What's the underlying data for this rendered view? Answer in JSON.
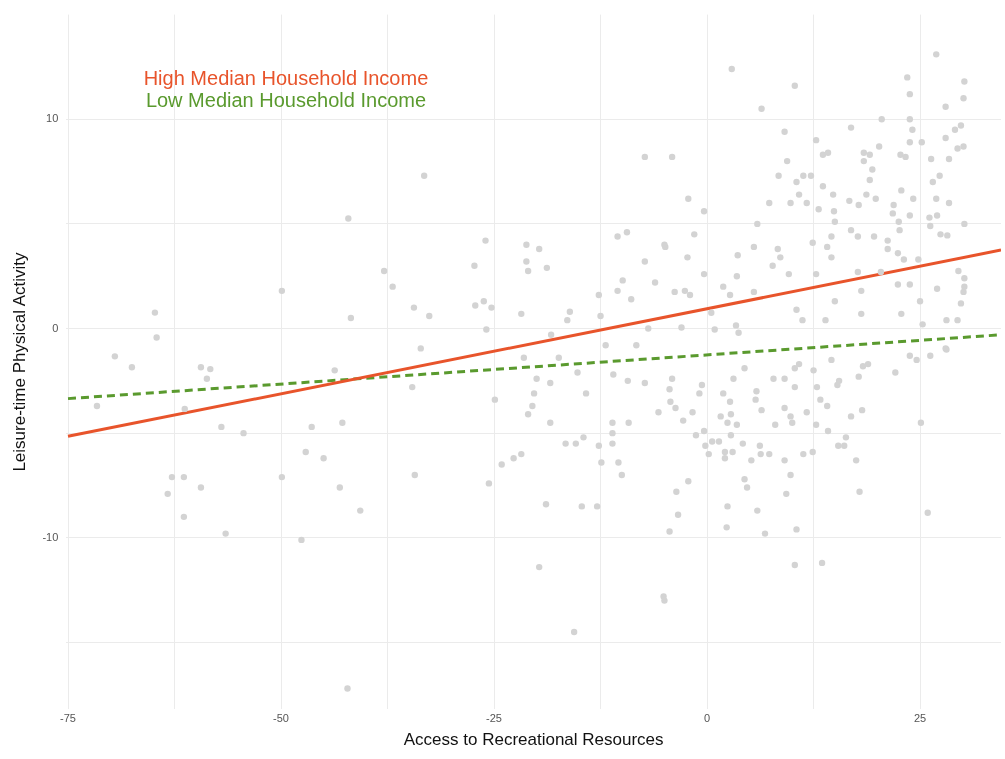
{
  "chart_data": {
    "type": "scatter",
    "xlabel": "Access to Recreational Resources",
    "ylabel": "Leisure-time Physical Activity",
    "xlim": [
      -75.2,
      34.5
    ],
    "ylim": [
      -18.2,
      15
    ],
    "xticks": [
      -75,
      {
        "value": -62.5,
        "label": null
      },
      -50,
      {
        "value": -37.5,
        "label": null
      },
      -25,
      {
        "value": -12.5,
        "label": null
      },
      0,
      {
        "value": 12.5,
        "label": null
      },
      25
    ],
    "yticks": [
      {
        "value": -15,
        "label": null
      },
      -10,
      {
        "value": -5,
        "label": null
      },
      0,
      {
        "value": 5,
        "label": null
      },
      10
    ],
    "grid": true,
    "legend": "top left",
    "series": [
      {
        "marker": "circle",
        "color": "#d3d3d3",
        "x": [
          -64.8,
          -64.6,
          -69.5,
          -67.5,
          -71.6,
          -61.3,
          -59.4,
          -58.3,
          -58.7,
          -57,
          -54.4,
          -49.9,
          -62.8,
          -61.4,
          -63.3,
          -59.4,
          -61.4,
          -56.5,
          -49.9,
          -47.6,
          -47.1,
          -45,
          -46.4,
          -43.1,
          -42.8,
          -43.7,
          -42.1,
          -42.2,
          -33.2,
          -37.9,
          -36.9,
          -41.8,
          -34.4,
          -32.6,
          -33.6,
          -34.6,
          -34.3,
          -40.7,
          -26,
          -27.3,
          -27.2,
          -26.2,
          -25.3,
          -25.9,
          -24.9,
          -25.6,
          -24.1,
          -22.7,
          -21.8,
          -21.2,
          -19.7,
          -21.2,
          -21,
          -18.8,
          -21.8,
          -21.5,
          -20,
          -20.3,
          -20.5,
          -21,
          -18.4,
          -18.4,
          -18.9,
          -19.7,
          -15.6,
          -18.3,
          -16.4,
          -16.1,
          -17.4,
          -15.2,
          -14.2,
          -16.6,
          -15.4,
          -14.5,
          -14.7,
          -12.9,
          -12.7,
          -12.4,
          -11.1,
          -11.1,
          -11.1,
          -10.4,
          -10,
          -9.2,
          -12.7,
          -12.5,
          -10.5,
          -9.4,
          -9.9,
          -10.5,
          -8.9,
          -11.9,
          -11,
          -9.3,
          -8.3,
          -7.3,
          -7.3,
          -6.1,
          -4.9,
          -7.3,
          -5.7,
          -5,
          -6.9,
          2.9,
          10.3,
          6.4,
          -4.1,
          -2.2,
          -0.35,
          -1.5,
          -5,
          -2.3,
          -0.35,
          -3.8,
          -2.6,
          -2,
          -3,
          0.9,
          0.5,
          1.9,
          2.7,
          3.5,
          3.6,
          5.5,
          5.9,
          5.5,
          3.4,
          3.7,
          7.7,
          8.3,
          8.6,
          7.3,
          8.4,
          9.1,
          9.4,
          9.8,
          10.5,
          11.3,
          10.8,
          11.7,
          12.2,
          9.6,
          10.5,
          11.2,
          12.8,
          13.6,
          14.2,
          13.6,
          14.8,
          13.1,
          14.9,
          15,
          14.6,
          14.1,
          14.6,
          12.4,
          12.8,
          13.9,
          15,
          16.9,
          16.7,
          17.8,
          16.9,
          17.7,
          18.4,
          19.1,
          18.4,
          19.4,
          20.2,
          19.1,
          18.7,
          19.8,
          20.5,
          19.6,
          21.2,
          21.2,
          22.4,
          21.9,
          21.8,
          22.5,
          22.6,
          22.8,
          22.7,
          23.3,
          23.5,
          23.8,
          23.8,
          24.1,
          23.8,
          25.2,
          24.2,
          23.8,
          23.1,
          22.4,
          23.8,
          24.8,
          25,
          22.8,
          18.1,
          18.1,
          17.7,
          20.4,
          25.3,
          26.9,
          30.2,
          30.1,
          28,
          29.1,
          29.8,
          28,
          29.4,
          30.1,
          26.3,
          28.4,
          27.3,
          26.5,
          26.9,
          28.4,
          27,
          26.1,
          26.2,
          27.4,
          28.2,
          30.2,
          29.5,
          30.2,
          30.2,
          30.1,
          29.8,
          27,
          28.1,
          29.4,
          28,
          -4.1,
          -4.4,
          -4.3,
          -3.7,
          -2.8,
          -1.7,
          -0.9,
          -0.6,
          -1.3,
          -0.35,
          -0.2,
          0.2,
          0.6,
          1.4,
          1.9,
          3.1,
          2.7,
          1.6,
          2.8,
          2.4,
          3.5,
          2.8,
          2.1,
          3,
          2.1,
          4.2,
          4.4,
          5.8,
          5.7,
          6.4,
          6.2,
          6.3,
          5.2,
          7.3,
          7.8,
          9.1,
          10.3,
          9.1,
          9.8,
          10,
          8,
          9.1,
          9.8,
          9.3,
          4.4,
          4.7,
          2.4,
          5.9,
          2.3,
          6.8,
          10.5,
          10.3,
          -2.2,
          -3.6,
          -3.4,
          -4.4,
          -5.1,
          10.3,
          10.8,
          11.7,
          11.3,
          12.4,
          12.5,
          12.9,
          13.3,
          14.1,
          12.8,
          14.2,
          14.6,
          15.5,
          15.3,
          16.9,
          18.2,
          16.3,
          15.4,
          16.1,
          17.5,
          17.9,
          17.8,
          18.3,
          18.9,
          22.1,
          23.8,
          24.6,
          26.2,
          28.1,
          25.1,
          25.9,
          13.5
        ],
        "values": [
          0.76,
          -0.43,
          -1.33,
          -1.85,
          -3.7,
          -3.84,
          -1.85,
          -1.94,
          -2.4,
          -4.7,
          -5,
          1.8,
          -7.1,
          -7.1,
          -7.9,
          -7.6,
          -9,
          -9.8,
          -7.1,
          -10.1,
          -5.9,
          -6.2,
          -4.7,
          -7.6,
          -4.5,
          -2,
          5.26,
          -17.2,
          7.3,
          2.75,
          2,
          0.5,
          1,
          0.6,
          -0.95,
          -2.8,
          -7,
          -8.7,
          4.2,
          3,
          1.1,
          1.3,
          1,
          -0.05,
          -3.4,
          -7.4,
          -6.5,
          -6.2,
          -6,
          4,
          3.8,
          3.2,
          2.75,
          2.9,
          0.7,
          -1.4,
          -2.4,
          -3.1,
          -3.7,
          -4.1,
          -4.5,
          -2.6,
          -8.4,
          -11.4,
          -14.5,
          -0.3,
          0.4,
          0.8,
          -1.4,
          -2.1,
          -3.1,
          -5.5,
          -5.5,
          -5.2,
          -8.5,
          -8.5,
          -5.6,
          -6.4,
          -4.5,
          -5,
          -5.5,
          -6.4,
          -7,
          -4.5,
          1.6,
          0.6,
          4.4,
          4.6,
          2.3,
          1.8,
          1.4,
          -0.8,
          -2.2,
          -2.5,
          -0.8,
          3.2,
          8.2,
          2.2,
          3.9,
          -2.6,
          -4,
          -13,
          0,
          12.4,
          11.6,
          10.5,
          8.2,
          6.2,
          5.6,
          4.5,
          4,
          3.4,
          2.6,
          1.75,
          1.8,
          1.6,
          0.05,
          -0.05,
          0.75,
          2,
          1.6,
          2.5,
          3.5,
          3.9,
          5,
          1.75,
          0.15,
          -0.2,
          3,
          3.8,
          3.4,
          6,
          7.3,
          9.4,
          8,
          6,
          7,
          7.3,
          6.4,
          6,
          7.3,
          2.6,
          0.9,
          0.4,
          9,
          8.3,
          8.4,
          6.8,
          6.4,
          5.7,
          5.6,
          5.1,
          4.4,
          3.9,
          3.4,
          4.1,
          2.6,
          0.4,
          1.3,
          9.6,
          6.1,
          5.9,
          4.7,
          4.4,
          8.4,
          8.3,
          8,
          7.6,
          8.7,
          7.1,
          6.4,
          6.2,
          10,
          4.4,
          4.2,
          3.8,
          3.6,
          5.9,
          5.5,
          5.1,
          4.7,
          6.6,
          8.3,
          8.2,
          12,
          11.2,
          10,
          9.5,
          8.9,
          8.9,
          6.2,
          5.4,
          3.3,
          2.1,
          2.1,
          3.3,
          1.3,
          0.7,
          0.7,
          1.8,
          2.7,
          2.7,
          0.2,
          13.1,
          11.8,
          11,
          10.6,
          9.5,
          9.7,
          9.1,
          8.6,
          8.7,
          8.1,
          8.1,
          7.3,
          7,
          6.2,
          6,
          5.4,
          5.3,
          4.9,
          4.5,
          4.45,
          5,
          2.75,
          2.4,
          2,
          1.75,
          1.2,
          1.9,
          0.4,
          0.4,
          -0.95,
          -2.4,
          -2.9,
          -3.5,
          -3.8,
          -4.4,
          -4,
          -3.1,
          -2.7,
          -5.1,
          -4.9,
          -5.6,
          -6,
          -5.4,
          -5.4,
          -3.1,
          -2.4,
          -3.5,
          -4.2,
          -4.1,
          -4.5,
          -4.6,
          -5.1,
          -5.9,
          -5.9,
          -6.2,
          -5.5,
          -1.9,
          -3,
          -3.4,
          -3.9,
          -5.6,
          -6,
          -6.3,
          -6,
          -2.4,
          -2.4,
          -2.8,
          -3.8,
          -4.2,
          -4.5,
          -4.6,
          -6.3,
          -7,
          -7.9,
          -7.2,
          -7.6,
          -8.5,
          -8.7,
          -9.5,
          -9.8,
          -9.6,
          -11.3,
          -7.3,
          -7.8,
          -8.9,
          -9.7,
          -12.8,
          -1.9,
          -1.7,
          -4,
          -6,
          -5.9,
          -2,
          -2.8,
          -3.4,
          -3.7,
          -4.6,
          -4.9,
          -1.5,
          -2.5,
          -2.7,
          -4.2,
          -3.9,
          -5.2,
          -5.6,
          -5.6,
          -6.3,
          -7.8,
          -2.3,
          -1.8,
          -1.7,
          -2.1,
          -1.3,
          -1.5,
          -1.3,
          -1,
          -4.5,
          -8.8,
          -11.2
        ]
      },
      {
        "type": "line",
        "name": "High Median Household Income",
        "color": "#e8542b",
        "line_style": "solid",
        "x": [
          -75,
          34.5
        ],
        "values": [
          -5.15,
          3.75
        ]
      },
      {
        "type": "line",
        "name": "Low Median Household Income",
        "color": "#5a9a2e",
        "line_style": "dashed",
        "x": [
          -75,
          34.5
        ],
        "values": [
          -3.35,
          -0.3
        ]
      }
    ]
  }
}
